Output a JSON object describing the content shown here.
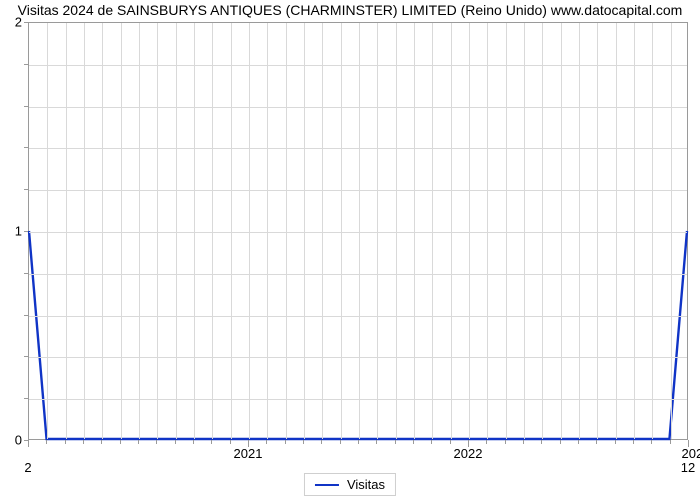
{
  "chart": {
    "type": "line",
    "title": "Visitas 2024 de SAINSBURYS ANTIQUES (CHARMINSTER) LIMITED (Reino Unido) www.datocapital.com",
    "title_fontsize": 14,
    "title_color": "#000000",
    "background_color": "#ffffff",
    "plot_border_color": "#9a9a9a",
    "grid_color": "#d9d9d9",
    "axis_label_color": "#000000",
    "axis_label_fontsize": 13,
    "xlim": [
      2020.0,
      2023.0
    ],
    "ylim": [
      0,
      2
    ],
    "y_major_ticks": [
      0,
      1,
      2
    ],
    "y_minor_per_major": 5,
    "x_major_ticks": [
      2021,
      2022
    ],
    "x_minor_per_major": 12,
    "x_secondary_left": "2",
    "x_secondary_right": "12",
    "x_right_label": "202",
    "series": [
      {
        "name": "Visitas",
        "color": "#1034c6",
        "line_width": 2.4,
        "x": [
          2020.0,
          2020.08,
          2022.92,
          2023.0
        ],
        "y": [
          1.0,
          0.0,
          0.0,
          1.0
        ]
      }
    ],
    "legend": {
      "label": "Visitas",
      "border_color": "#cfcfcf",
      "background_color": "#ffffff",
      "fontsize": 13
    }
  }
}
